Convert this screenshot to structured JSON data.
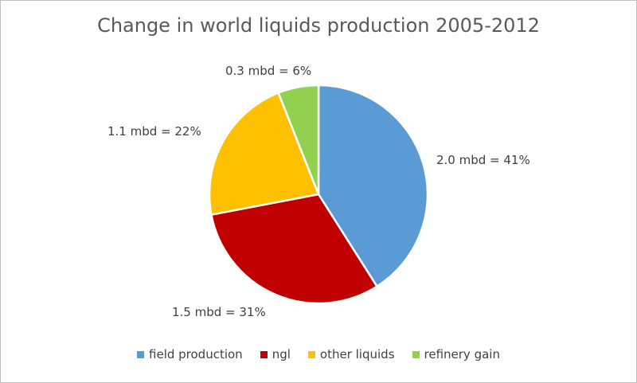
{
  "chart_data": {
    "type": "pie",
    "title": "Change in world liquids production 2005-2012",
    "series": [
      {
        "name": "field production",
        "value": 2.0,
        "percent": 41,
        "label": "2.0 mbd = 41%",
        "color": "#5b9bd5"
      },
      {
        "name": "ngl",
        "value": 1.5,
        "percent": 31,
        "label": "1.5 mbd = 31%",
        "color": "#c00000"
      },
      {
        "name": "other liquids",
        "value": 1.1,
        "percent": 22,
        "label": "1.1 mbd = 22%",
        "color": "#ffc000"
      },
      {
        "name": "refinery gain",
        "value": 0.3,
        "percent": 6,
        "label": "0.3 mbd = 6%",
        "color": "#92d050"
      }
    ],
    "legend_position": "bottom"
  }
}
